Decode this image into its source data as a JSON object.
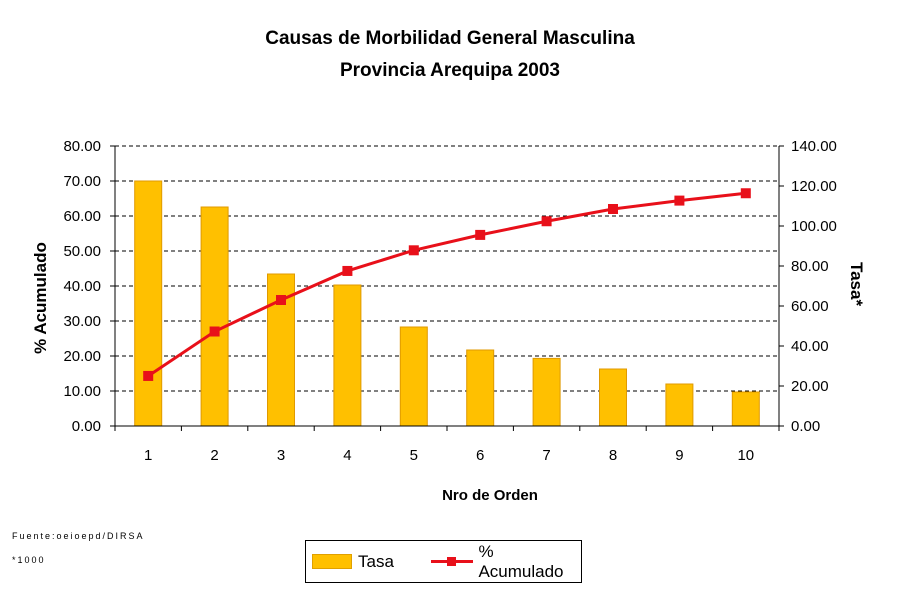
{
  "chart_data": {
    "type": "bar",
    "title": "Causas de Morbilidad General Masculina",
    "subtitle": "Provincia Arequipa 2003",
    "xlabel": "Nro de Orden",
    "ylabel_left": "% Acumulado",
    "ylabel_right": "Tasa*",
    "categories": [
      "1",
      "2",
      "3",
      "4",
      "5",
      "6",
      "7",
      "8",
      "9",
      "10"
    ],
    "ylim_left": [
      0,
      80
    ],
    "ylim_right": [
      0,
      140
    ],
    "yticks_left": [
      "0.00",
      "10.00",
      "20.00",
      "30.00",
      "40.00",
      "50.00",
      "60.00",
      "70.00",
      "80.00"
    ],
    "yticks_right": [
      "0.00",
      "20.00",
      "40.00",
      "60.00",
      "80.00",
      "100.00",
      "120.00",
      "140.00"
    ],
    "grid": "horizontal dashed",
    "legend_position": "bottom",
    "series": [
      {
        "name": "Tasa",
        "type": "bar",
        "axis": "right",
        "color": "#FFC000",
        "values": [
          122.5,
          109.5,
          76.0,
          70.5,
          49.5,
          38.0,
          33.8,
          28.5,
          21.0,
          17.0
        ]
      },
      {
        "name": "% Acumulado",
        "type": "line",
        "axis": "left",
        "color": "#E8101A",
        "values": [
          14.3,
          27.0,
          36.0,
          44.3,
          50.2,
          54.6,
          58.5,
          62.0,
          64.4,
          66.5
        ]
      }
    ]
  },
  "notes": {
    "source": "Fuente:oeioepd/DIRSA",
    "multiplier": "*1000"
  },
  "legend": {
    "tasa_label": "Tasa",
    "acum_label": "% Acumulado"
  }
}
